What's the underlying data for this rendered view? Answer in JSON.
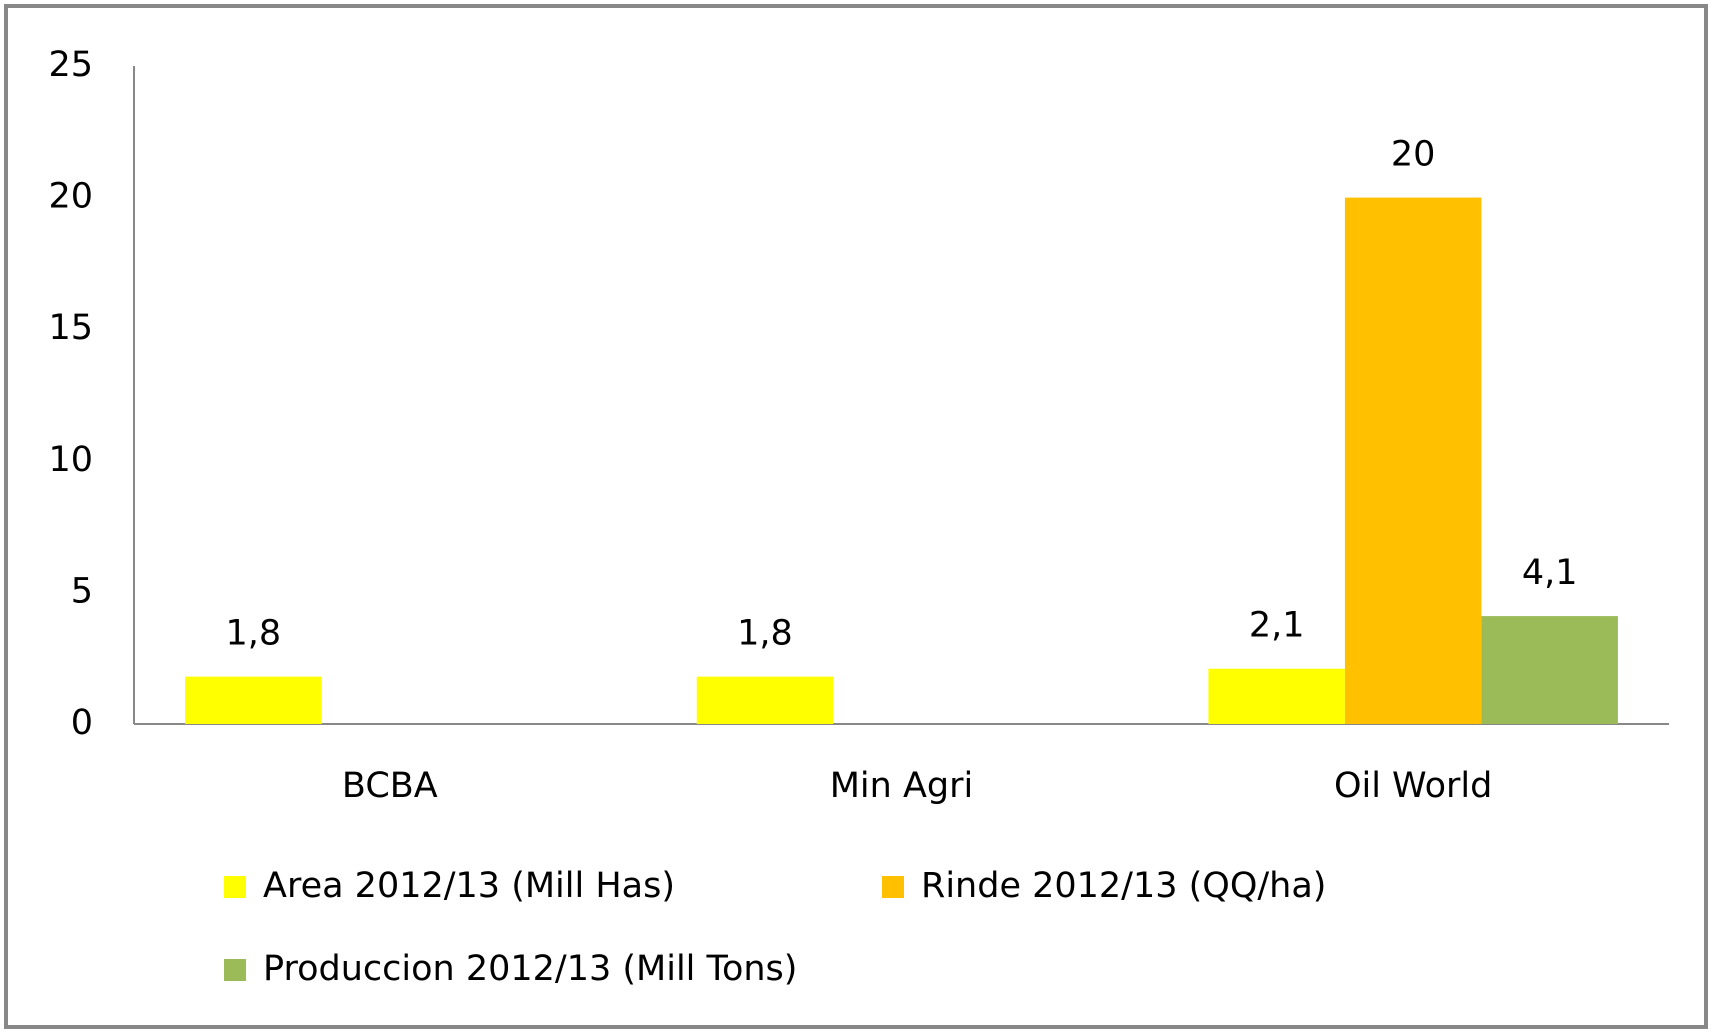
{
  "chart_data": {
    "type": "bar",
    "categories": [
      "BCBA",
      "Min Agri",
      "Oil World"
    ],
    "series": [
      {
        "name": "Area 2012/13 (Mill Has)",
        "color": "#ffff00",
        "values": [
          1.8,
          1.8,
          2.1
        ],
        "value_labels": [
          "1,8",
          "1,8",
          "2,1"
        ]
      },
      {
        "name": "Rinde 2012/13 (QQ/ha)",
        "color": "#ffc000",
        "values": [
          null,
          null,
          20
        ]
      },
      {
        "name": "Produccion 2012/13 (Mill Tons)",
        "color": "#9bbb59",
        "values": [
          null,
          null,
          4.1
        ],
        "value_labels": [
          null,
          null,
          "4,1"
        ]
      }
    ],
    "ylim": [
      0,
      25
    ],
    "yticks": [
      0,
      5,
      10,
      15,
      20,
      25
    ],
    "grid": false
  }
}
